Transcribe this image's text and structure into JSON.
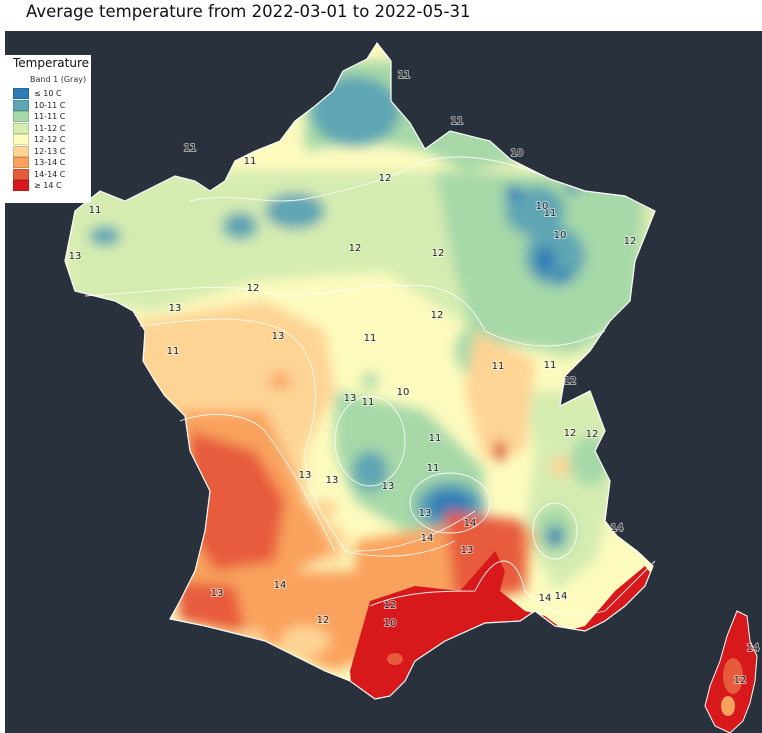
{
  "title": "Average temperature from 2022-03-01 to 2022-05-31",
  "legend": {
    "title": "Temperature",
    "band": "Band 1 (Gray)",
    "items": [
      {
        "label": "≤ 10 C",
        "color": "#2c7bb6"
      },
      {
        "label": "10-11 C",
        "color": "#5fa5b4"
      },
      {
        "label": "11-11 C",
        "color": "#a6d8a8"
      },
      {
        "label": "11-12 C",
        "color": "#d5ecb1"
      },
      {
        "label": "12-12 C",
        "color": "#fdfbbe"
      },
      {
        "label": "12-13 C",
        "color": "#fdd494"
      },
      {
        "label": "13-14 C",
        "color": "#f9a25d"
      },
      {
        "label": "14-14 C",
        "color": "#e75b3c"
      },
      {
        "label": "≥ 14 C",
        "color": "#d7191c"
      }
    ]
  },
  "map": {
    "background_color": "#29313d",
    "contour_labels": [
      "11",
      "11",
      "11",
      "11",
      "10",
      "12",
      "11",
      "11",
      "12",
      "10",
      "10",
      "12",
      "12",
      "13",
      "12",
      "13",
      "12",
      "13",
      "11",
      "11",
      "11",
      "11",
      "12",
      "13",
      "11",
      "10",
      "12",
      "11",
      "12",
      "13",
      "11",
      "13",
      "13",
      "13",
      "14",
      "12",
      "10",
      "14",
      "13",
      "12",
      "14",
      "13",
      "14",
      "14",
      "14",
      "14",
      "12"
    ]
  }
}
